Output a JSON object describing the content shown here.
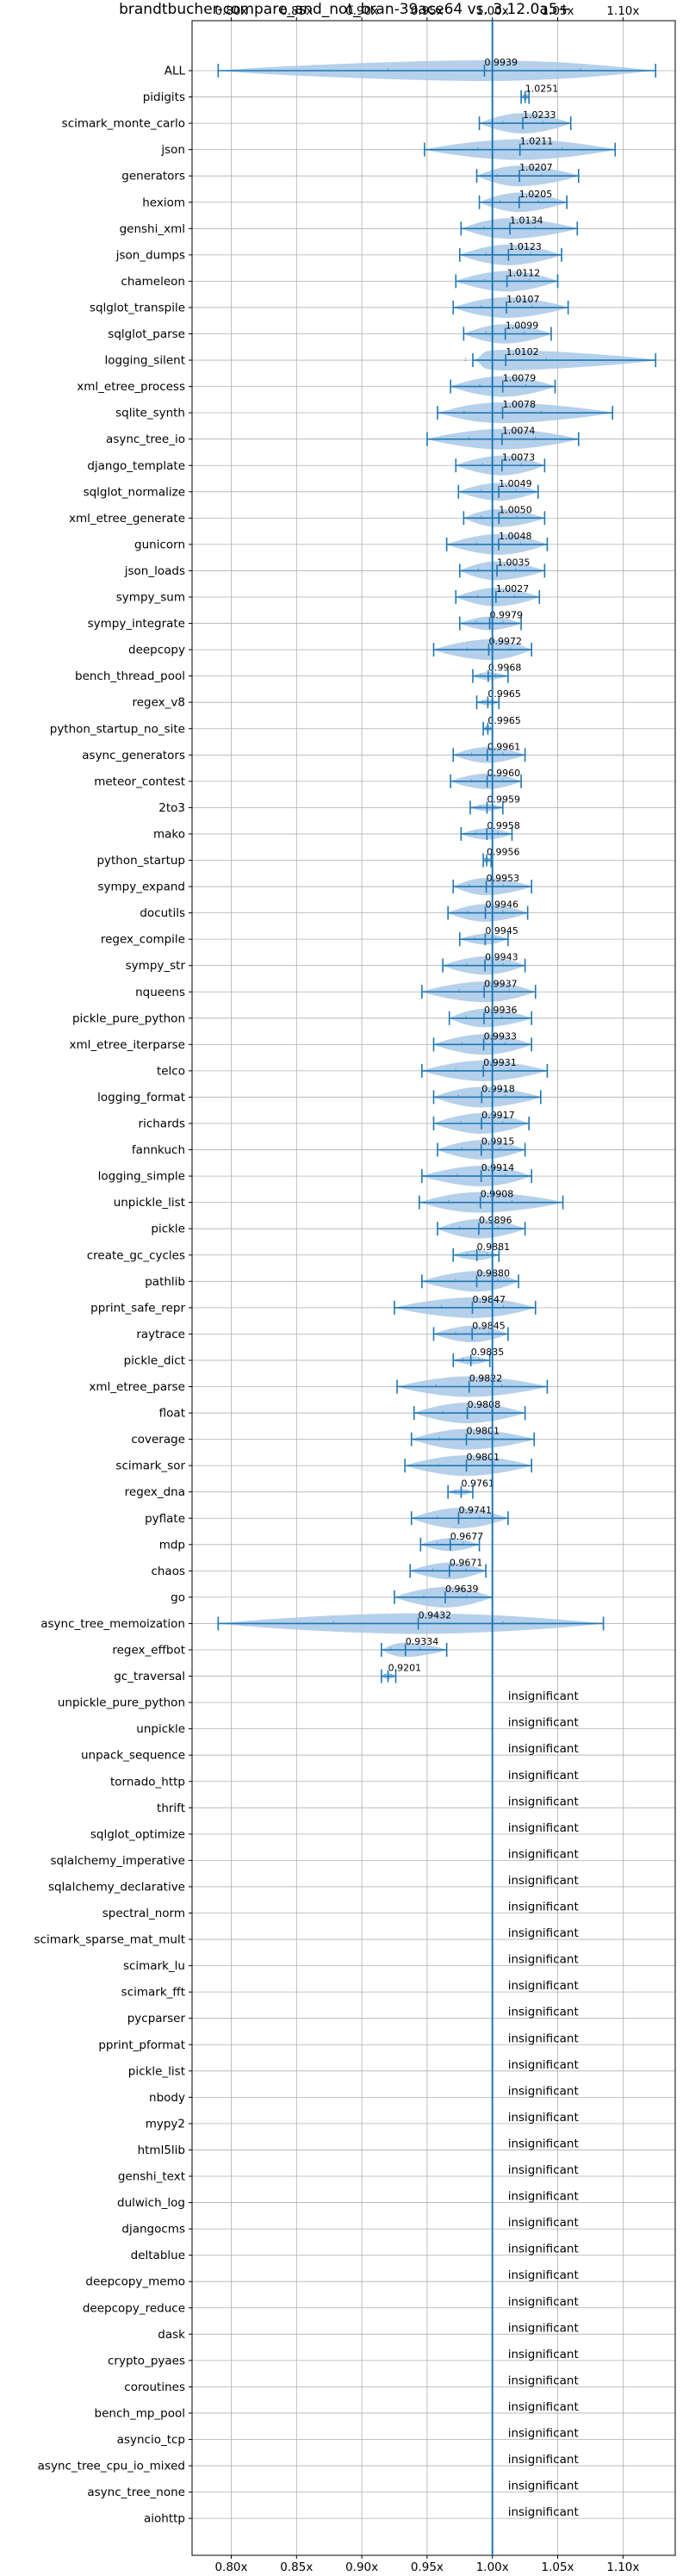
{
  "chart_data": {
    "type": "violin",
    "title": "brandtbucher-compare_and_not_bran-39ace64 vs. 3.12.0a5+",
    "xlim": [
      0.77,
      1.14
    ],
    "xticks": [
      0.8,
      0.85,
      0.9,
      0.95,
      1.0,
      1.05,
      1.1
    ],
    "xtick_labels": [
      "0.80x",
      "0.85x",
      "0.90x",
      "0.95x",
      "1.00x",
      "1.05x",
      "1.10x"
    ],
    "reference_line": 1.0,
    "grid": true,
    "insignificant_text": "insignificant",
    "colors": {
      "accent": "#1f77b4",
      "violin": "#a8c8e6",
      "grid": "#b0b0b0"
    },
    "rows": [
      {
        "name": "ALL",
        "label": "0.9939",
        "mean": 0.9939,
        "min": 0.79,
        "max": 1.125
      },
      {
        "name": "pidigits",
        "label": "1.0251",
        "mean": 1.0251,
        "min": 1.022,
        "max": 1.028
      },
      {
        "name": "scimark_monte_carlo",
        "label": "1.0233",
        "mean": 1.0233,
        "min": 0.99,
        "max": 1.06
      },
      {
        "name": "json",
        "label": "1.0211",
        "mean": 1.0211,
        "min": 0.948,
        "max": 1.094
      },
      {
        "name": "generators",
        "label": "1.0207",
        "mean": 1.0207,
        "min": 0.988,
        "max": 1.066
      },
      {
        "name": "hexiom",
        "label": "1.0205",
        "mean": 1.0205,
        "min": 0.99,
        "max": 1.057
      },
      {
        "name": "genshi_xml",
        "label": "1.0134",
        "mean": 1.0134,
        "min": 0.976,
        "max": 1.065
      },
      {
        "name": "json_dumps",
        "label": "1.0123",
        "mean": 1.0123,
        "min": 0.975,
        "max": 1.053
      },
      {
        "name": "chameleon",
        "label": "1.0112",
        "mean": 1.0112,
        "min": 0.972,
        "max": 1.05
      },
      {
        "name": "sqlglot_transpile",
        "label": "1.0107",
        "mean": 1.0107,
        "min": 0.97,
        "max": 1.058
      },
      {
        "name": "sqlglot_parse",
        "label": "1.0099",
        "mean": 1.0099,
        "min": 0.978,
        "max": 1.045
      },
      {
        "name": "logging_silent",
        "label": "1.0102",
        "mean": 1.0102,
        "min": 0.985,
        "max": 1.125
      },
      {
        "name": "xml_etree_process",
        "label": "1.0079",
        "mean": 1.0079,
        "min": 0.968,
        "max": 1.048
      },
      {
        "name": "sqlite_synth",
        "label": "1.0078",
        "mean": 1.0078,
        "min": 0.958,
        "max": 1.092
      },
      {
        "name": "async_tree_io",
        "label": "1.0074",
        "mean": 1.0074,
        "min": 0.95,
        "max": 1.066
      },
      {
        "name": "django_template",
        "label": "1.0073",
        "mean": 1.0073,
        "min": 0.972,
        "max": 1.04
      },
      {
        "name": "sqlglot_normalize",
        "label": "1.0049",
        "mean": 1.0049,
        "min": 0.974,
        "max": 1.035
      },
      {
        "name": "xml_etree_generate",
        "label": "1.0050",
        "mean": 1.005,
        "min": 0.978,
        "max": 1.04
      },
      {
        "name": "gunicorn",
        "label": "1.0048",
        "mean": 1.0048,
        "min": 0.965,
        "max": 1.042
      },
      {
        "name": "json_loads",
        "label": "1.0035",
        "mean": 1.0035,
        "min": 0.975,
        "max": 1.04
      },
      {
        "name": "sympy_sum",
        "label": "1.0027",
        "mean": 1.0027,
        "min": 0.972,
        "max": 1.036
      },
      {
        "name": "sympy_integrate",
        "label": "0.9979",
        "mean": 0.9979,
        "min": 0.975,
        "max": 1.022
      },
      {
        "name": "deepcopy",
        "label": "0.9972",
        "mean": 0.9972,
        "min": 0.955,
        "max": 1.03
      },
      {
        "name": "bench_thread_pool",
        "label": "0.9968",
        "mean": 0.9968,
        "min": 0.985,
        "max": 1.012
      },
      {
        "name": "regex_v8",
        "label": "0.9965",
        "mean": 0.9965,
        "min": 0.988,
        "max": 1.005
      },
      {
        "name": "python_startup_no_site",
        "label": "0.9965",
        "mean": 0.9965,
        "min": 0.993,
        "max": 1.0
      },
      {
        "name": "async_generators",
        "label": "0.9961",
        "mean": 0.9961,
        "min": 0.97,
        "max": 1.025
      },
      {
        "name": "meteor_contest",
        "label": "0.9960",
        "mean": 0.996,
        "min": 0.968,
        "max": 1.022
      },
      {
        "name": "2to3",
        "label": "0.9959",
        "mean": 0.9959,
        "min": 0.983,
        "max": 1.008
      },
      {
        "name": "mako",
        "label": "0.9958",
        "mean": 0.9958,
        "min": 0.976,
        "max": 1.015
      },
      {
        "name": "python_startup",
        "label": "0.9956",
        "mean": 0.9956,
        "min": 0.993,
        "max": 0.999
      },
      {
        "name": "sympy_expand",
        "label": "0.9953",
        "mean": 0.9953,
        "min": 0.97,
        "max": 1.03
      },
      {
        "name": "docutils",
        "label": "0.9946",
        "mean": 0.9946,
        "min": 0.966,
        "max": 1.027
      },
      {
        "name": "regex_compile",
        "label": "0.9945",
        "mean": 0.9945,
        "min": 0.975,
        "max": 1.012
      },
      {
        "name": "sympy_str",
        "label": "0.9943",
        "mean": 0.9943,
        "min": 0.962,
        "max": 1.025
      },
      {
        "name": "nqueens",
        "label": "0.9937",
        "mean": 0.9937,
        "min": 0.946,
        "max": 1.033
      },
      {
        "name": "pickle_pure_python",
        "label": "0.9936",
        "mean": 0.9936,
        "min": 0.967,
        "max": 1.03
      },
      {
        "name": "xml_etree_iterparse",
        "label": "0.9933",
        "mean": 0.9933,
        "min": 0.955,
        "max": 1.03
      },
      {
        "name": "telco",
        "label": "0.9931",
        "mean": 0.9931,
        "min": 0.946,
        "max": 1.042
      },
      {
        "name": "logging_format",
        "label": "0.9918",
        "mean": 0.9918,
        "min": 0.955,
        "max": 1.037
      },
      {
        "name": "richards",
        "label": "0.9917",
        "mean": 0.9917,
        "min": 0.955,
        "max": 1.028
      },
      {
        "name": "fannkuch",
        "label": "0.9915",
        "mean": 0.9915,
        "min": 0.958,
        "max": 1.025
      },
      {
        "name": "logging_simple",
        "label": "0.9914",
        "mean": 0.9914,
        "min": 0.946,
        "max": 1.03
      },
      {
        "name": "unpickle_list",
        "label": "0.9908",
        "mean": 0.9908,
        "min": 0.944,
        "max": 1.054
      },
      {
        "name": "pickle",
        "label": "0.9896",
        "mean": 0.9896,
        "min": 0.958,
        "max": 1.025
      },
      {
        "name": "create_gc_cycles",
        "label": "0.9881",
        "mean": 0.9881,
        "min": 0.97,
        "max": 1.005
      },
      {
        "name": "pathlib",
        "label": "0.9880",
        "mean": 0.988,
        "min": 0.946,
        "max": 1.02
      },
      {
        "name": "pprint_safe_repr",
        "label": "0.9847",
        "mean": 0.9847,
        "min": 0.925,
        "max": 1.033
      },
      {
        "name": "raytrace",
        "label": "0.9845",
        "mean": 0.9845,
        "min": 0.955,
        "max": 1.012
      },
      {
        "name": "pickle_dict",
        "label": "0.9835",
        "mean": 0.9835,
        "min": 0.97,
        "max": 0.998
      },
      {
        "name": "xml_etree_parse",
        "label": "0.9822",
        "mean": 0.9822,
        "min": 0.927,
        "max": 1.042
      },
      {
        "name": "float",
        "label": "0.9808",
        "mean": 0.9808,
        "min": 0.94,
        "max": 1.025
      },
      {
        "name": "coverage",
        "label": "0.9801",
        "mean": 0.9801,
        "min": 0.938,
        "max": 1.032
      },
      {
        "name": "scimark_sor",
        "label": "0.9801",
        "mean": 0.9801,
        "min": 0.933,
        "max": 1.03
      },
      {
        "name": "regex_dna",
        "label": "0.9761",
        "mean": 0.9761,
        "min": 0.966,
        "max": 0.985
      },
      {
        "name": "pyflate",
        "label": "0.9741",
        "mean": 0.9741,
        "min": 0.938,
        "max": 1.012
      },
      {
        "name": "mdp",
        "label": "0.9677",
        "mean": 0.9677,
        "min": 0.945,
        "max": 0.99
      },
      {
        "name": "chaos",
        "label": "0.9671",
        "mean": 0.9671,
        "min": 0.937,
        "max": 0.995
      },
      {
        "name": "go",
        "label": "0.9639",
        "mean": 0.9639,
        "min": 0.925,
        "max": 1.0
      },
      {
        "name": "async_tree_memoization",
        "label": "0.9432",
        "mean": 0.9432,
        "min": 0.79,
        "max": 1.085
      },
      {
        "name": "regex_effbot",
        "label": "0.9334",
        "mean": 0.9334,
        "min": 0.915,
        "max": 0.965
      },
      {
        "name": "gc_traversal",
        "label": "0.9201",
        "mean": 0.9201,
        "min": 0.915,
        "max": 0.926
      },
      {
        "name": "unpickle_pure_python",
        "insignificant": true
      },
      {
        "name": "unpickle",
        "insignificant": true
      },
      {
        "name": "unpack_sequence",
        "insignificant": true
      },
      {
        "name": "tornado_http",
        "insignificant": true
      },
      {
        "name": "thrift",
        "insignificant": true
      },
      {
        "name": "sqlglot_optimize",
        "insignificant": true
      },
      {
        "name": "sqlalchemy_imperative",
        "insignificant": true
      },
      {
        "name": "sqlalchemy_declarative",
        "insignificant": true
      },
      {
        "name": "spectral_norm",
        "insignificant": true
      },
      {
        "name": "scimark_sparse_mat_mult",
        "insignificant": true
      },
      {
        "name": "scimark_lu",
        "insignificant": true
      },
      {
        "name": "scimark_fft",
        "insignificant": true
      },
      {
        "name": "pycparser",
        "insignificant": true
      },
      {
        "name": "pprint_pformat",
        "insignificant": true
      },
      {
        "name": "pickle_list",
        "insignificant": true
      },
      {
        "name": "nbody",
        "insignificant": true
      },
      {
        "name": "mypy2",
        "insignificant": true
      },
      {
        "name": "html5lib",
        "insignificant": true
      },
      {
        "name": "genshi_text",
        "insignificant": true
      },
      {
        "name": "dulwich_log",
        "insignificant": true
      },
      {
        "name": "djangocms",
        "insignificant": true
      },
      {
        "name": "deltablue",
        "insignificant": true
      },
      {
        "name": "deepcopy_memo",
        "insignificant": true
      },
      {
        "name": "deepcopy_reduce",
        "insignificant": true
      },
      {
        "name": "dask",
        "insignificant": true
      },
      {
        "name": "crypto_pyaes",
        "insignificant": true
      },
      {
        "name": "coroutines",
        "insignificant": true
      },
      {
        "name": "bench_mp_pool",
        "insignificant": true
      },
      {
        "name": "asyncio_tcp",
        "insignificant": true
      },
      {
        "name": "async_tree_cpu_io_mixed",
        "insignificant": true
      },
      {
        "name": "async_tree_none",
        "insignificant": true
      },
      {
        "name": "aiohttp",
        "insignificant": true
      }
    ]
  }
}
